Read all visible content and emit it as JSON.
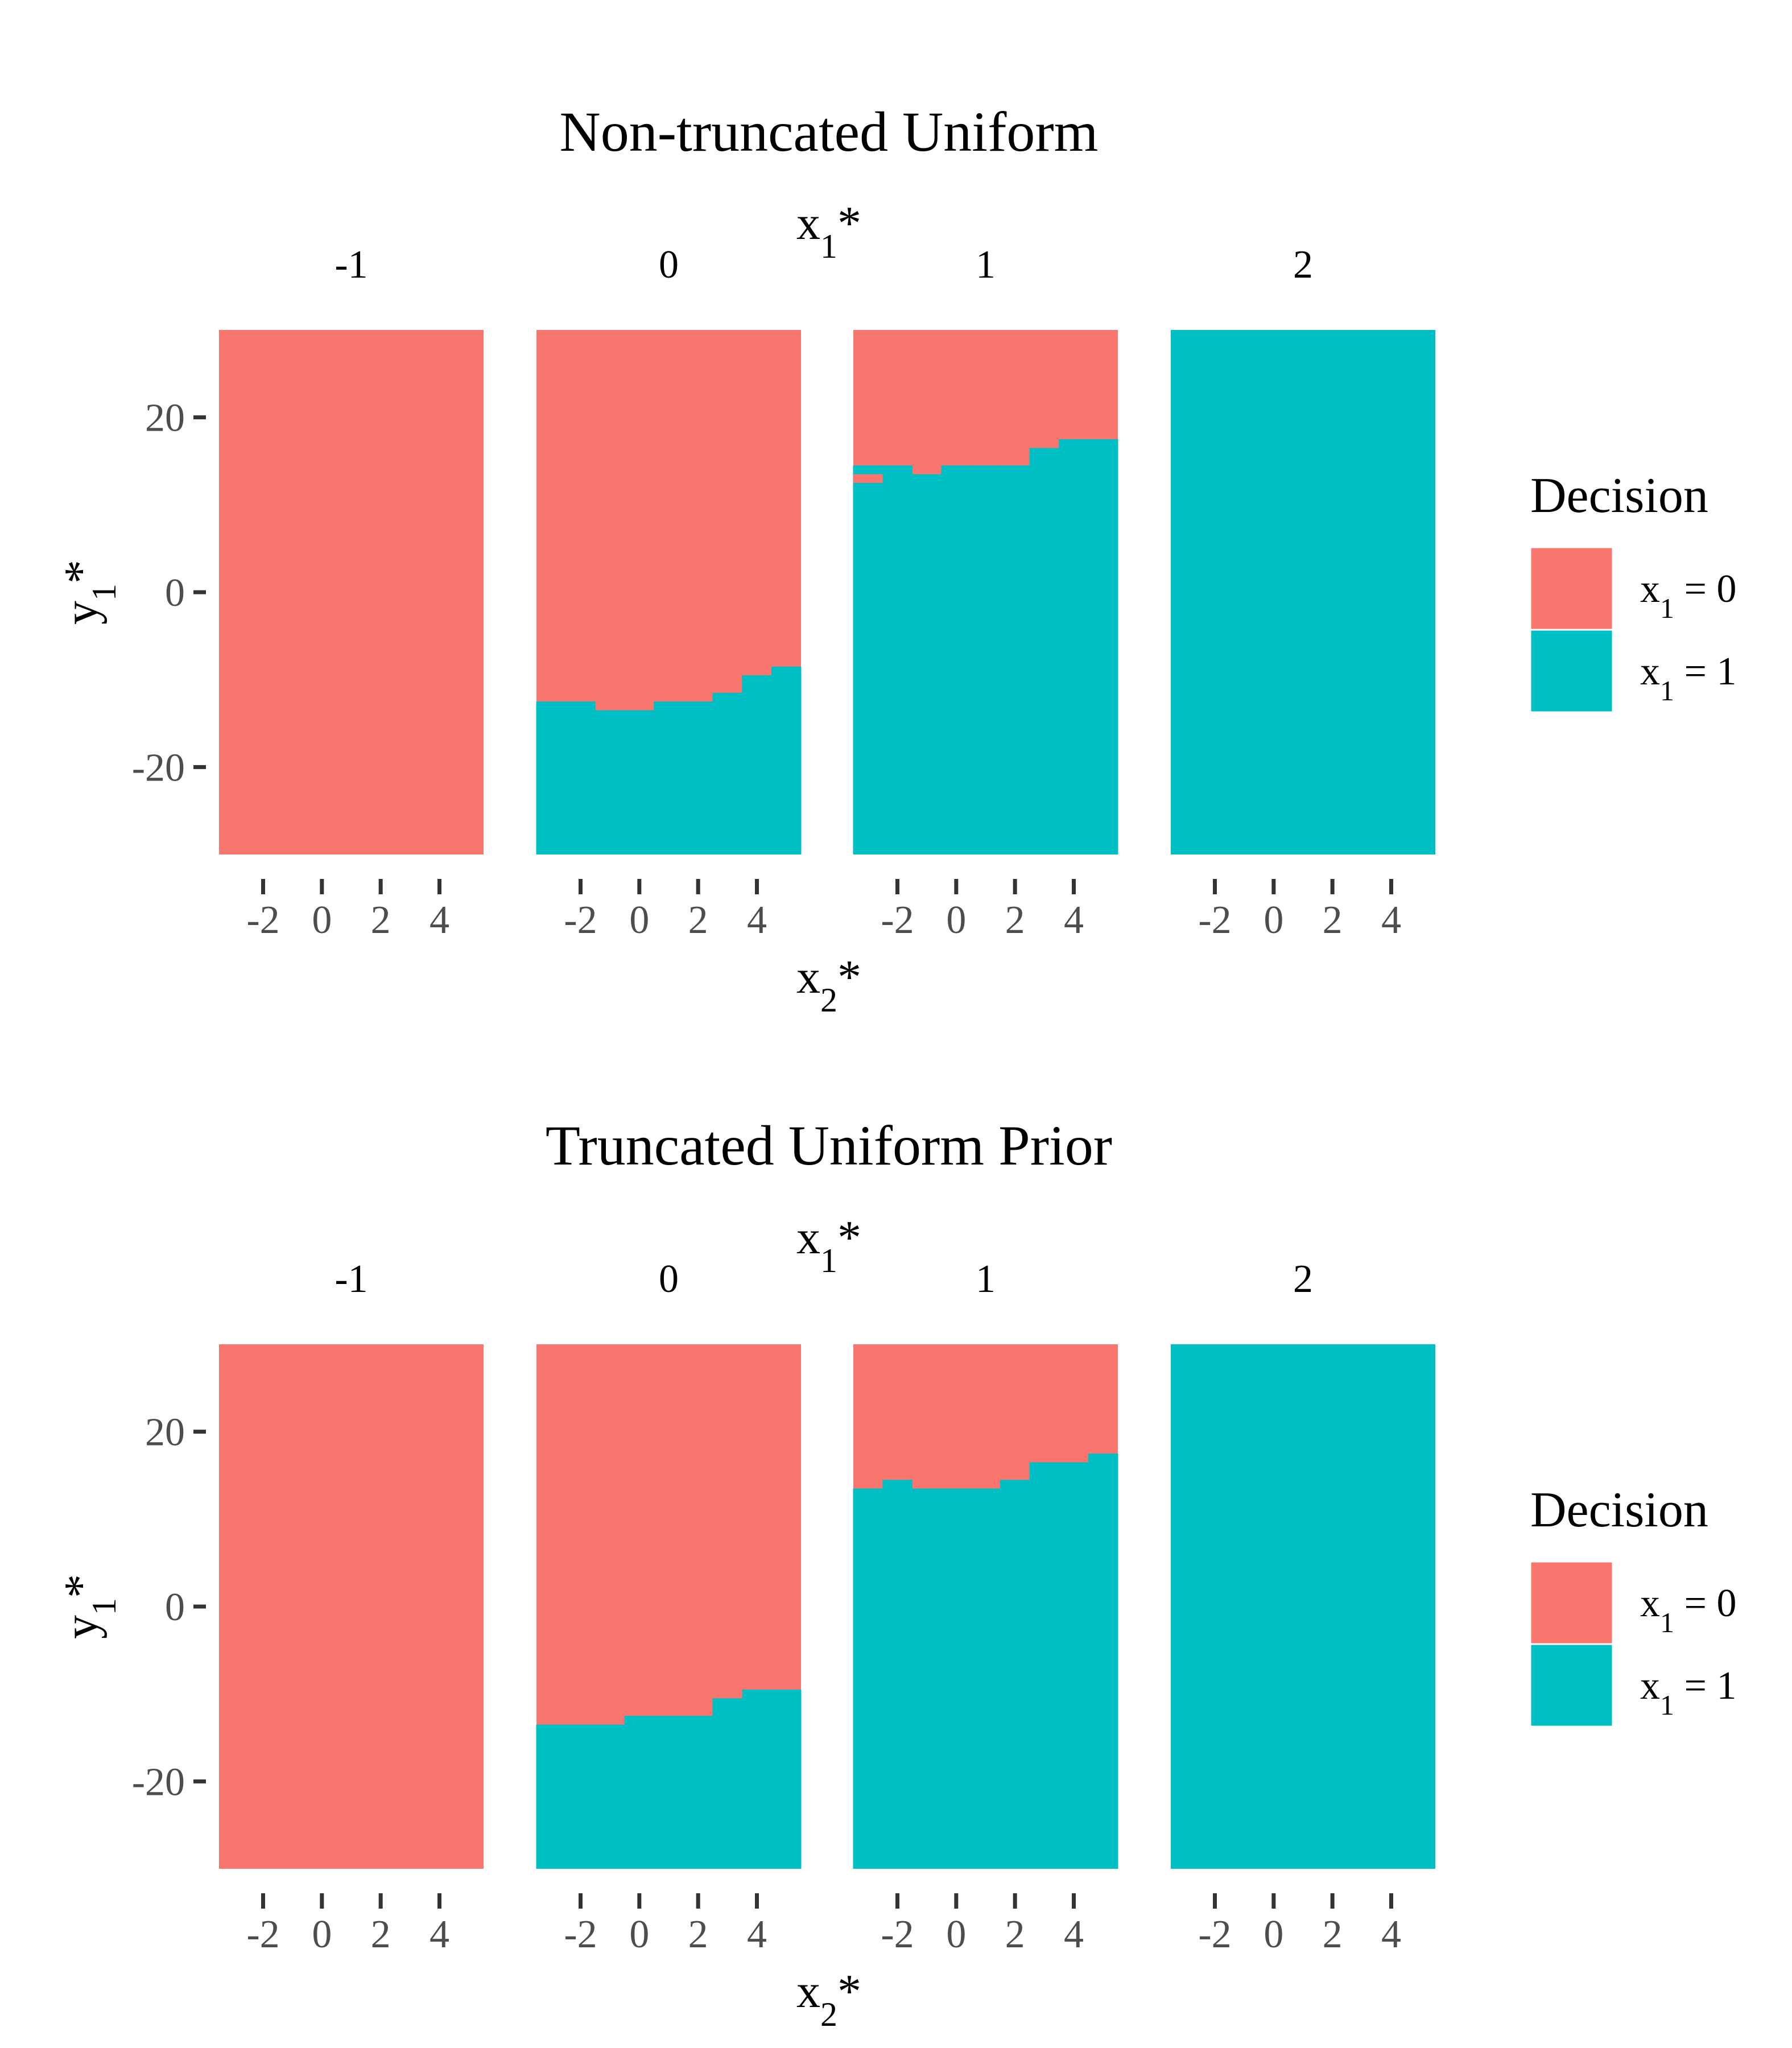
{
  "chart_data": [
    {
      "type": "heatmap",
      "title": "Non-truncated Uniform",
      "facet_label": "x1*",
      "facets": [
        "-1",
        "0",
        "1",
        "2"
      ],
      "xlabel": "x2*",
      "ylabel": "y1*",
      "x_ticks": [
        "-2",
        "0",
        "2",
        "4"
      ],
      "y_ticks": [
        "20",
        "0",
        "-20"
      ],
      "xlim": [
        -3.5,
        5.5
      ],
      "ylim": [
        -30,
        30
      ],
      "legend": {
        "title": "Decision",
        "position": "right",
        "entries": [
          {
            "label": "x1 = 0",
            "value": 0,
            "color": "#F8766D"
          },
          {
            "label": "x1 = 1",
            "value": 1,
            "color": "#00BFC4"
          }
        ]
      },
      "description": "Decision is x1 = 1 where y1* is below the boundary; boundary per x2* column (x2* from -3.5 to 5.5 in steps of 1)",
      "x_bins": [
        -3.5,
        -2.5,
        -1.5,
        -0.5,
        0.5,
        1.5,
        2.5,
        3.5,
        4.5,
        5.5
      ],
      "boundaries": {
        "-1": null,
        "0": [
          -12.5,
          -12.5,
          -13.5,
          -13.5,
          -12.5,
          -12.5,
          -11.5,
          -9.5,
          -8.5
        ],
        "1": [
          14.5,
          14.5,
          13.5,
          14.5,
          14.5,
          14.5,
          16.5,
          17.5,
          17.5
        ],
        "2": "all x1 = 1"
      },
      "anomalies": [
        {
          "facet": "1",
          "x_range": [
            -3.5,
            -2.5
          ],
          "y_range": [
            12.5,
            13.5
          ],
          "decision": 0
        }
      ]
    },
    {
      "type": "heatmap",
      "title": "Truncated Uniform Prior",
      "facet_label": "x1*",
      "facets": [
        "-1",
        "0",
        "1",
        "2"
      ],
      "xlabel": "x2*",
      "ylabel": "y1*",
      "x_ticks": [
        "-2",
        "0",
        "2",
        "4"
      ],
      "y_ticks": [
        "20",
        "0",
        "-20"
      ],
      "xlim": [
        -3.5,
        5.5
      ],
      "ylim": [
        -30,
        30
      ],
      "legend": {
        "title": "Decision",
        "position": "right",
        "entries": [
          {
            "label": "x1 = 0",
            "value": 0,
            "color": "#F8766D"
          },
          {
            "label": "x1 = 1",
            "value": 1,
            "color": "#00BFC4"
          }
        ]
      },
      "x_bins": [
        -3.5,
        -2.5,
        -1.5,
        -0.5,
        0.5,
        1.5,
        2.5,
        3.5,
        4.5,
        5.5
      ],
      "boundaries": {
        "-1": null,
        "0": [
          -13.5,
          -13.5,
          -13.5,
          -12.5,
          -12.5,
          -12.5,
          -10.5,
          -10.5,
          -9.5
        ],
        "1": [
          13.5,
          14.5,
          13.5,
          13.5,
          13.5,
          14.5,
          16.5,
          16.5,
          17.5
        ],
        "2": "all x1 = 1"
      },
      "anomalies": [
        {
          "facet": "0",
          "x_range": [
            3.5,
            4.5
          ],
          "y_range": [
            -10.5,
            -9.5
          ],
          "decision": 1
        }
      ]
    }
  ],
  "colors": {
    "x1_0": "#F8766D",
    "x1_1": "#00BFC4",
    "tick_text": "#4d4d4d",
    "axis_ticks": "#333333"
  }
}
